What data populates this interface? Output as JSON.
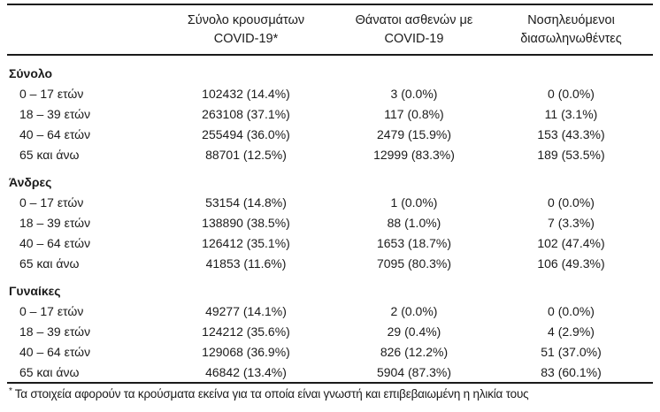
{
  "colors": {
    "background": "#ffffff",
    "text": "#1b1b1b",
    "rule": "#1a1a1a"
  },
  "table": {
    "col_headers": [
      {
        "line1": "Σύνολο κρουσμάτων",
        "line2": "COVID-19*"
      },
      {
        "line1": "Θάνατοι ασθενών με",
        "line2": "COVID-19"
      },
      {
        "line1": "Νοσηλευόμενοι",
        "line2": "διασωληνωθέντες"
      }
    ],
    "sections": [
      {
        "label": "Σύνολο",
        "rows": [
          {
            "age": "0 – 17 ετών",
            "cases": "102432 (14.4%)",
            "deaths": "3 (0.0%)",
            "intubated": "0 (0.0%)"
          },
          {
            "age": "18 – 39 ετών",
            "cases": "263108 (37.1%)",
            "deaths": "117 (0.8%)",
            "intubated": "11 (3.1%)"
          },
          {
            "age": "40 – 64 ετών",
            "cases": "255494 (36.0%)",
            "deaths": "2479 (15.9%)",
            "intubated": "153 (43.3%)"
          },
          {
            "age": "65 και άνω",
            "cases": "88701 (12.5%)",
            "deaths": "12999 (83.3%)",
            "intubated": "189 (53.5%)"
          }
        ]
      },
      {
        "label": "Άνδρες",
        "rows": [
          {
            "age": "0 – 17 ετών",
            "cases": "53154 (14.8%)",
            "deaths": "1 (0.0%)",
            "intubated": "0 (0.0%)"
          },
          {
            "age": "18 – 39 ετών",
            "cases": "138890 (38.5%)",
            "deaths": "88 (1.0%)",
            "intubated": "7 (3.3%)"
          },
          {
            "age": "40 – 64 ετών",
            "cases": "126412 (35.1%)",
            "deaths": "1653 (18.7%)",
            "intubated": "102 (47.4%)"
          },
          {
            "age": "65 και άνω",
            "cases": "41853 (11.6%)",
            "deaths": "7095 (80.3%)",
            "intubated": "106 (49.3%)"
          }
        ]
      },
      {
        "label": "Γυναίκες",
        "rows": [
          {
            "age": "0 – 17 ετών",
            "cases": "49277 (14.1%)",
            "deaths": "2 (0.0%)",
            "intubated": "0 (0.0%)"
          },
          {
            "age": "18 – 39 ετών",
            "cases": "124212 (35.6%)",
            "deaths": "29 (0.4%)",
            "intubated": "4 (2.9%)"
          },
          {
            "age": "40 – 64 ετών",
            "cases": "129068 (36.9%)",
            "deaths": "826 (12.2%)",
            "intubated": "51 (37.0%)"
          },
          {
            "age": "65 και άνω",
            "cases": "46842 (13.4%)",
            "deaths": "5904 (87.3%)",
            "intubated": "83 (60.1%)"
          }
        ]
      }
    ],
    "footnote": {
      "marker": "*",
      "text": "Τα στοιχεία αφορούν τα κρούσματα εκείνα για τα οποία είναι γνωστή και επιβεβαιωμένη η ηλικία τους"
    }
  }
}
